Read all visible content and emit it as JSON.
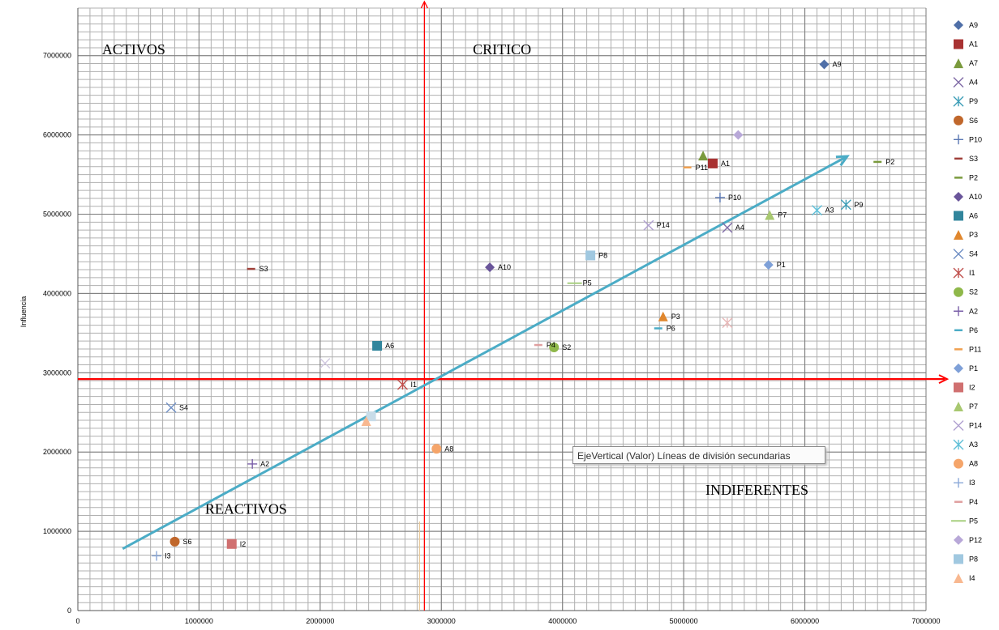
{
  "tooltip": "EjeVertical (Valor)  Líneas de división secundarias",
  "chart_data": {
    "type": "scatter",
    "ylabel": "Influencia",
    "xlim": [
      0,
      7000000
    ],
    "ylim": [
      0,
      7600000
    ],
    "xticks": [
      0,
      1000000,
      2000000,
      3000000,
      4000000,
      5000000,
      6000000,
      7000000
    ],
    "yticks": [
      0,
      1000000,
      2000000,
      3000000,
      4000000,
      5000000,
      6000000,
      7000000
    ],
    "grid": true,
    "legend_position": "right",
    "quadrants": [
      {
        "name": "ACTIVOS",
        "x": 200000,
        "y": 7020000
      },
      {
        "name": "CRITICO",
        "x": 3260000,
        "y": 7020000
      },
      {
        "name": "REACTIVOS",
        "x": 1050000,
        "y": 1220000
      },
      {
        "name": "INDIFERENTES",
        "x": 5180000,
        "y": 1460000
      }
    ],
    "threshold_x": 2860000,
    "threshold_y": 2920000,
    "trend_line": {
      "x": [
        370000,
        6350000
      ],
      "y": [
        780000,
        5730000
      ],
      "color": "#4bacc6"
    },
    "points": [
      {
        "name": "A9",
        "x": 6160000,
        "y": 6890000,
        "marker": "diamond",
        "color": "#4f6fa8",
        "label": true
      },
      {
        "name": "A1",
        "x": 5240000,
        "y": 5640000,
        "marker": "square",
        "color": "#a83232",
        "label": true
      },
      {
        "name": "A7",
        "x": 5160000,
        "y": 5740000,
        "marker": "triangle",
        "color": "#7a9a3d",
        "label": false
      },
      {
        "name": "A4",
        "x": 5360000,
        "y": 4830000,
        "marker": "x",
        "color": "#7f6ba6",
        "label": true
      },
      {
        "name": "P9",
        "x": 6340000,
        "y": 5120000,
        "marker": "star",
        "color": "#3f9fb8",
        "label": true
      },
      {
        "name": "S6",
        "x": 800000,
        "y": 870000,
        "marker": "circle",
        "color": "#c0672b",
        "label": true
      },
      {
        "name": "P10",
        "x": 5300000,
        "y": 5210000,
        "marker": "plus",
        "color": "#5a78b4",
        "label": true
      },
      {
        "name": "S3",
        "x": 1430000,
        "y": 4310000,
        "marker": "dash",
        "color": "#a0403a",
        "label": true
      },
      {
        "name": "P2",
        "x": 6600000,
        "y": 5660000,
        "marker": "dash",
        "color": "#7a9a3d",
        "label": true
      },
      {
        "name": "A10",
        "x": 3400000,
        "y": 4330000,
        "marker": "diamond",
        "color": "#6a559a",
        "label": true
      },
      {
        "name": "A6",
        "x": 2470000,
        "y": 3340000,
        "marker": "square",
        "color": "#31859c",
        "label": true
      },
      {
        "name": "P3",
        "x": 4830000,
        "y": 3710000,
        "marker": "triangle",
        "color": "#e0872e",
        "label": true
      },
      {
        "name": "S4",
        "x": 770000,
        "y": 2560000,
        "marker": "x",
        "color": "#6f8fc4",
        "label": true
      },
      {
        "name": "I1",
        "x": 2680000,
        "y": 2850000,
        "marker": "star",
        "color": "#c0504d",
        "label": true
      },
      {
        "name": "S2",
        "x": 3930000,
        "y": 3320000,
        "marker": "circle",
        "color": "#8fb84a",
        "label": true
      },
      {
        "name": "A2",
        "x": 1440000,
        "y": 1850000,
        "marker": "plus",
        "color": "#7a5fa8",
        "label": true
      },
      {
        "name": "P6",
        "x": 4790000,
        "y": 3560000,
        "marker": "dash",
        "color": "#4bacc6",
        "label": true
      },
      {
        "name": "P11",
        "x": 5030000,
        "y": 5590000,
        "marker": "dash",
        "color": "#f0a050",
        "label": true
      },
      {
        "name": "P1",
        "x": 5700000,
        "y": 4360000,
        "marker": "diamond",
        "color": "#7ea0d8",
        "label": true
      },
      {
        "name": "I2",
        "x": 1270000,
        "y": 840000,
        "marker": "square",
        "color": "#d07070",
        "label": true
      },
      {
        "name": "P7",
        "x": 5710000,
        "y": 4990000,
        "marker": "triangle",
        "color": "#a8c870",
        "label": true
      },
      {
        "name": "P14",
        "x": 4710000,
        "y": 4860000,
        "marker": "x",
        "color": "#b0a0d0",
        "label": true
      },
      {
        "name": "A3",
        "x": 6100000,
        "y": 5050000,
        "marker": "star",
        "color": "#60c0d8",
        "label": true
      },
      {
        "name": "A8",
        "x": 2960000,
        "y": 2040000,
        "marker": "circle",
        "color": "#f5a56a",
        "label": true
      },
      {
        "name": "I3",
        "x": 650000,
        "y": 690000,
        "marker": "plus",
        "color": "#8aa8d8",
        "label": true
      },
      {
        "name": "P4",
        "x": 3800000,
        "y": 3350000,
        "marker": "dash",
        "color": "#e0a0a0",
        "label": true
      },
      {
        "name": "P5",
        "x": 4100000,
        "y": 4130000,
        "marker": "line",
        "color": "#a8d080",
        "label": true
      },
      {
        "name": "P12",
        "x": 5450000,
        "y": 6000000,
        "marker": "diamond",
        "color": "#b8a8d8",
        "label": false
      },
      {
        "name": "P8",
        "x": 4230000,
        "y": 4480000,
        "marker": "square",
        "color": "#a0c8e0",
        "label": true
      },
      {
        "name": "I4",
        "x": 2380000,
        "y": 2390000,
        "marker": "triangle",
        "color": "#f8b890",
        "label": false
      }
    ],
    "faint_points": [
      {
        "x": 2040000,
        "y": 3120000,
        "marker": "x",
        "color": "#d0c8e0"
      },
      {
        "x": 5360000,
        "y": 3630000,
        "marker": "star",
        "color": "#e8b8b8"
      },
      {
        "x": 2420000,
        "y": 2450000,
        "marker": "square",
        "color": "#c8dce8"
      }
    ],
    "legend": [
      "A9",
      "A1",
      "A7",
      "A4",
      "P9",
      "S6",
      "P10",
      "S3",
      "P2",
      "A10",
      "A6",
      "P3",
      "S4",
      "I1",
      "S2",
      "A2",
      "P6",
      "P11",
      "P1",
      "I2",
      "P7",
      "P14",
      "A3",
      "A8",
      "I3",
      "P4",
      "P5",
      "P12",
      "P8",
      "I4"
    ]
  }
}
